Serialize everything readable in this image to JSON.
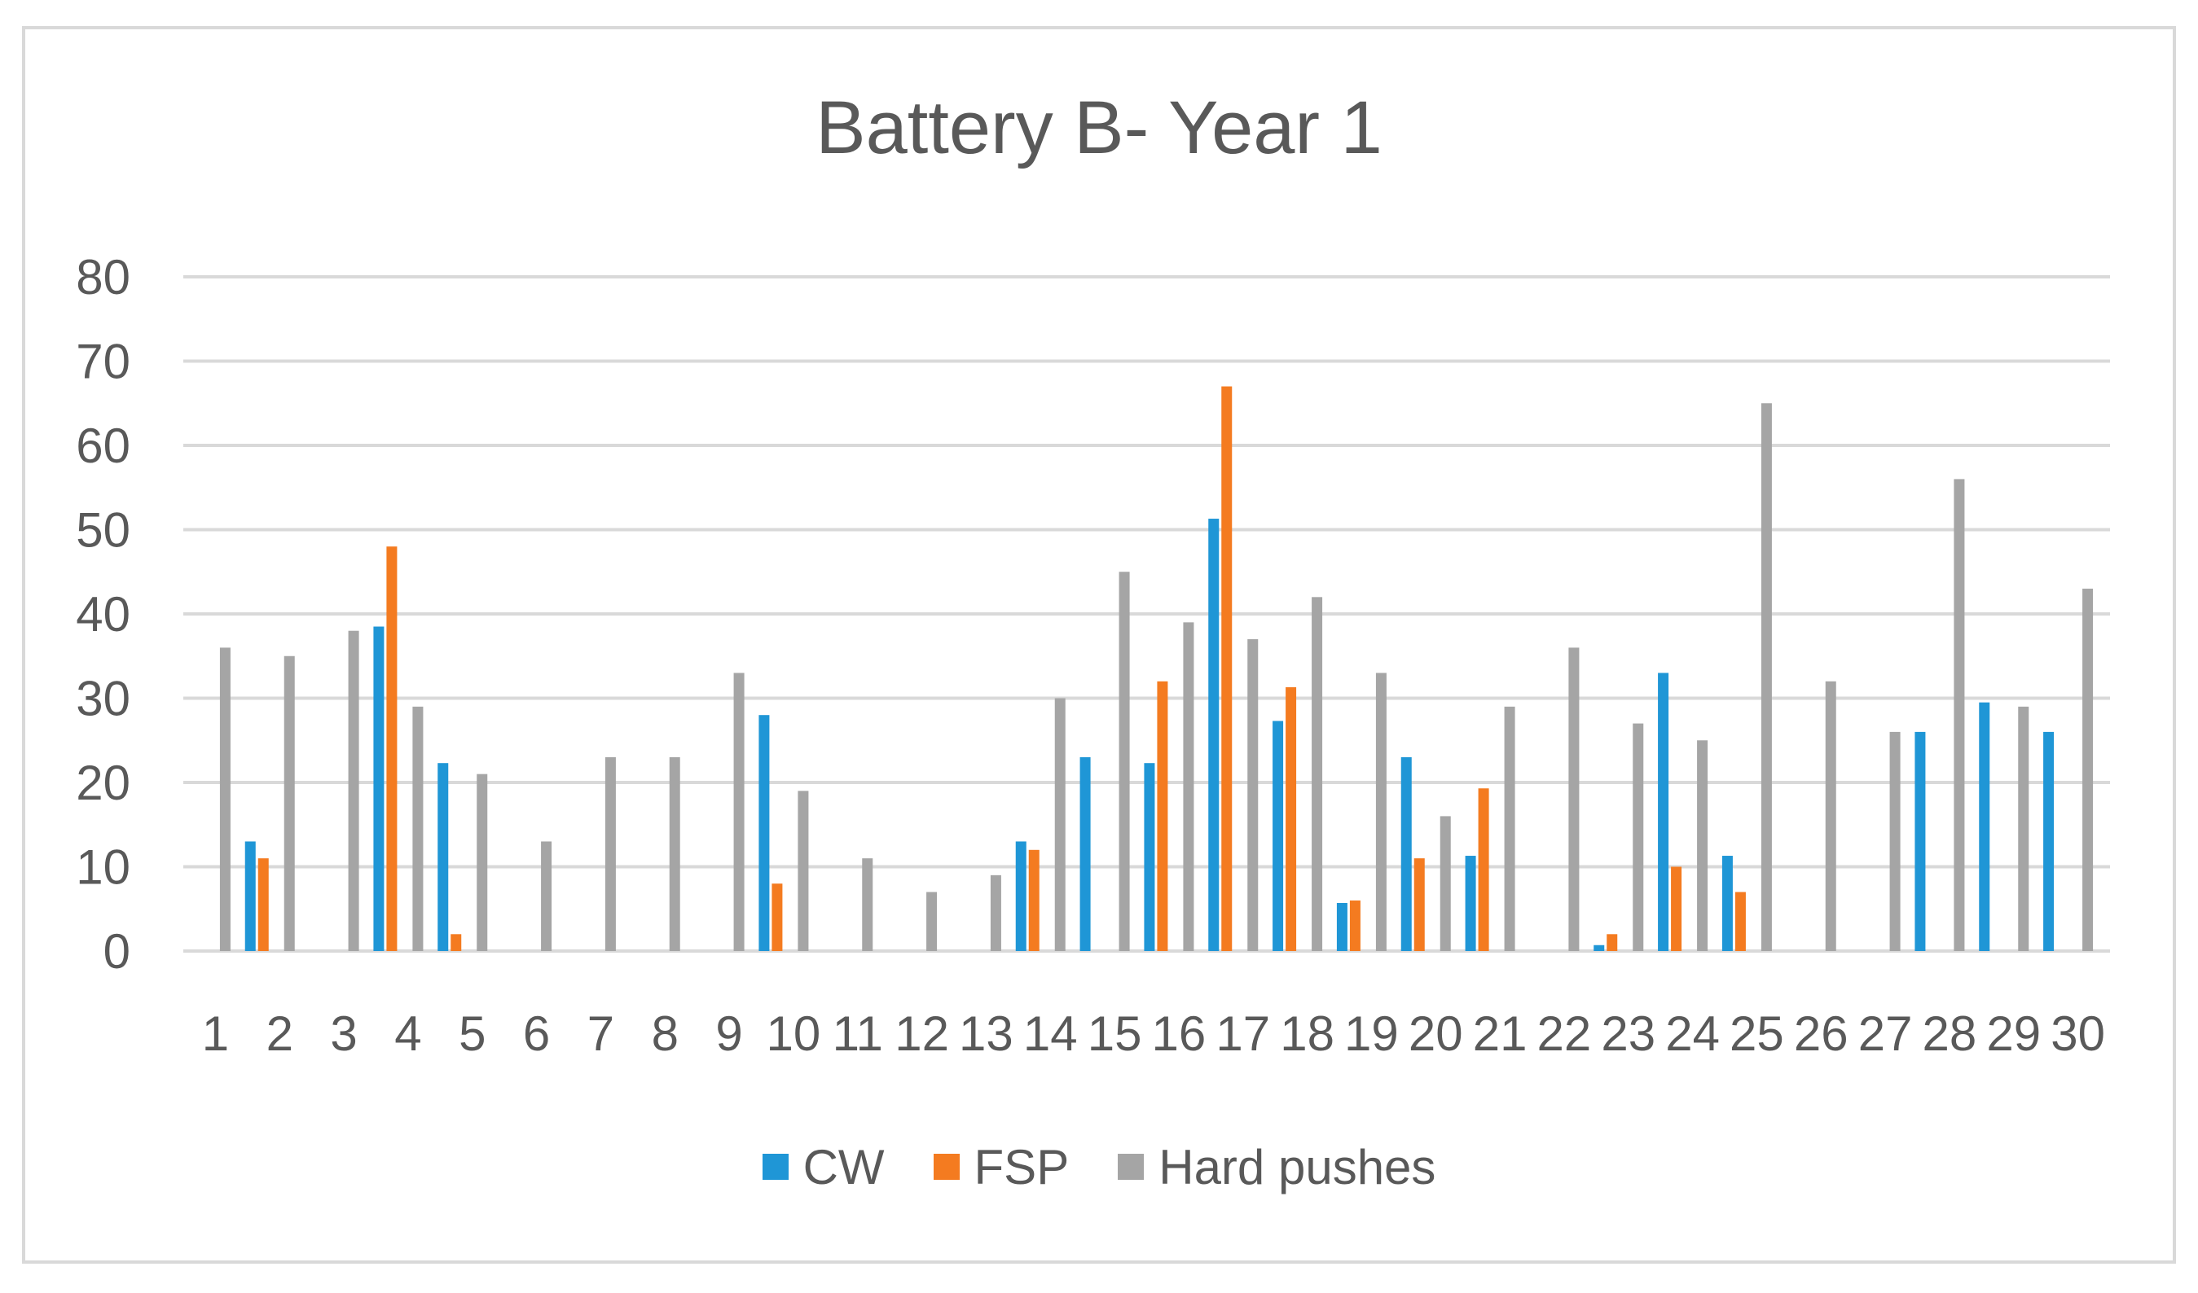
{
  "chart_data": {
    "type": "bar",
    "title": "Battery B- Year 1",
    "xlabel": "",
    "ylabel": "",
    "ylim": [
      0,
      80
    ],
    "yticks": [
      0,
      10,
      20,
      30,
      40,
      50,
      60,
      70,
      80
    ],
    "grid": true,
    "legend_position": "bottom",
    "categories": [
      "1",
      "2",
      "3",
      "4",
      "5",
      "6",
      "7",
      "8",
      "9",
      "10",
      "11",
      "12",
      "13",
      "14",
      "15",
      "16",
      "17",
      "18",
      "19",
      "20",
      "21",
      "22",
      "23",
      "24",
      "25",
      "26",
      "27",
      "28",
      "29",
      "30"
    ],
    "series": [
      {
        "name": "CW",
        "color": "#1f96d6",
        "values": [
          0,
          13,
          0,
          38.5,
          22.3,
          0,
          0,
          0,
          0,
          28,
          0,
          0,
          0,
          13,
          23,
          22.3,
          51.3,
          27.3,
          5.7,
          23,
          11.3,
          0,
          0.7,
          33,
          11.3,
          0,
          0,
          26,
          29.5,
          26
        ]
      },
      {
        "name": "FSP",
        "color": "#f47b20",
        "values": [
          0,
          11,
          0,
          48,
          2,
          0,
          0,
          0,
          0,
          8,
          0,
          0,
          0,
          12,
          0,
          32,
          67,
          31.3,
          6,
          11,
          19.3,
          0,
          2,
          10,
          7,
          0,
          0,
          0,
          0,
          0
        ]
      },
      {
        "name": "Hard pushes",
        "color": "#a5a5a5",
        "values": [
          36,
          35,
          38,
          29,
          21,
          13,
          23,
          23,
          33,
          19,
          11,
          7,
          9,
          30,
          45,
          39,
          37,
          42,
          33,
          16,
          29,
          36,
          27,
          25,
          65,
          32,
          26,
          56,
          29,
          43
        ]
      }
    ]
  }
}
